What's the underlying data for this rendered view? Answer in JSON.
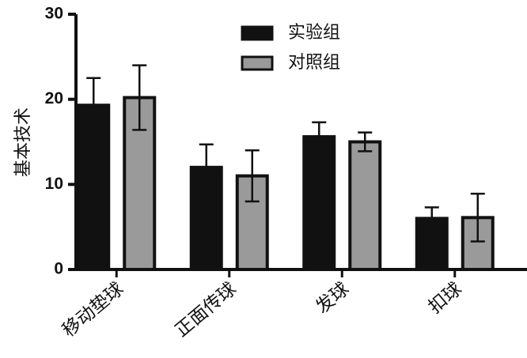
{
  "chart_data": {
    "type": "bar",
    "ylabel": "基本技术",
    "categories": [
      "移动垫球",
      "正面传球",
      "发球",
      "扣球"
    ],
    "series": [
      {
        "name": "实验组",
        "color": "#111111",
        "values": [
          19.3,
          12.0,
          15.6,
          6.0
        ],
        "errors": [
          3.2,
          2.7,
          1.7,
          1.3
        ]
      },
      {
        "name": "对照组",
        "color": "#9a9a9a",
        "values": [
          20.2,
          11.0,
          15.0,
          6.1
        ],
        "errors": [
          3.8,
          3.0,
          1.1,
          2.8
        ]
      }
    ],
    "ylim": [
      0,
      30
    ],
    "yticks": [
      0,
      10,
      20,
      30
    ],
    "legend": "top"
  }
}
